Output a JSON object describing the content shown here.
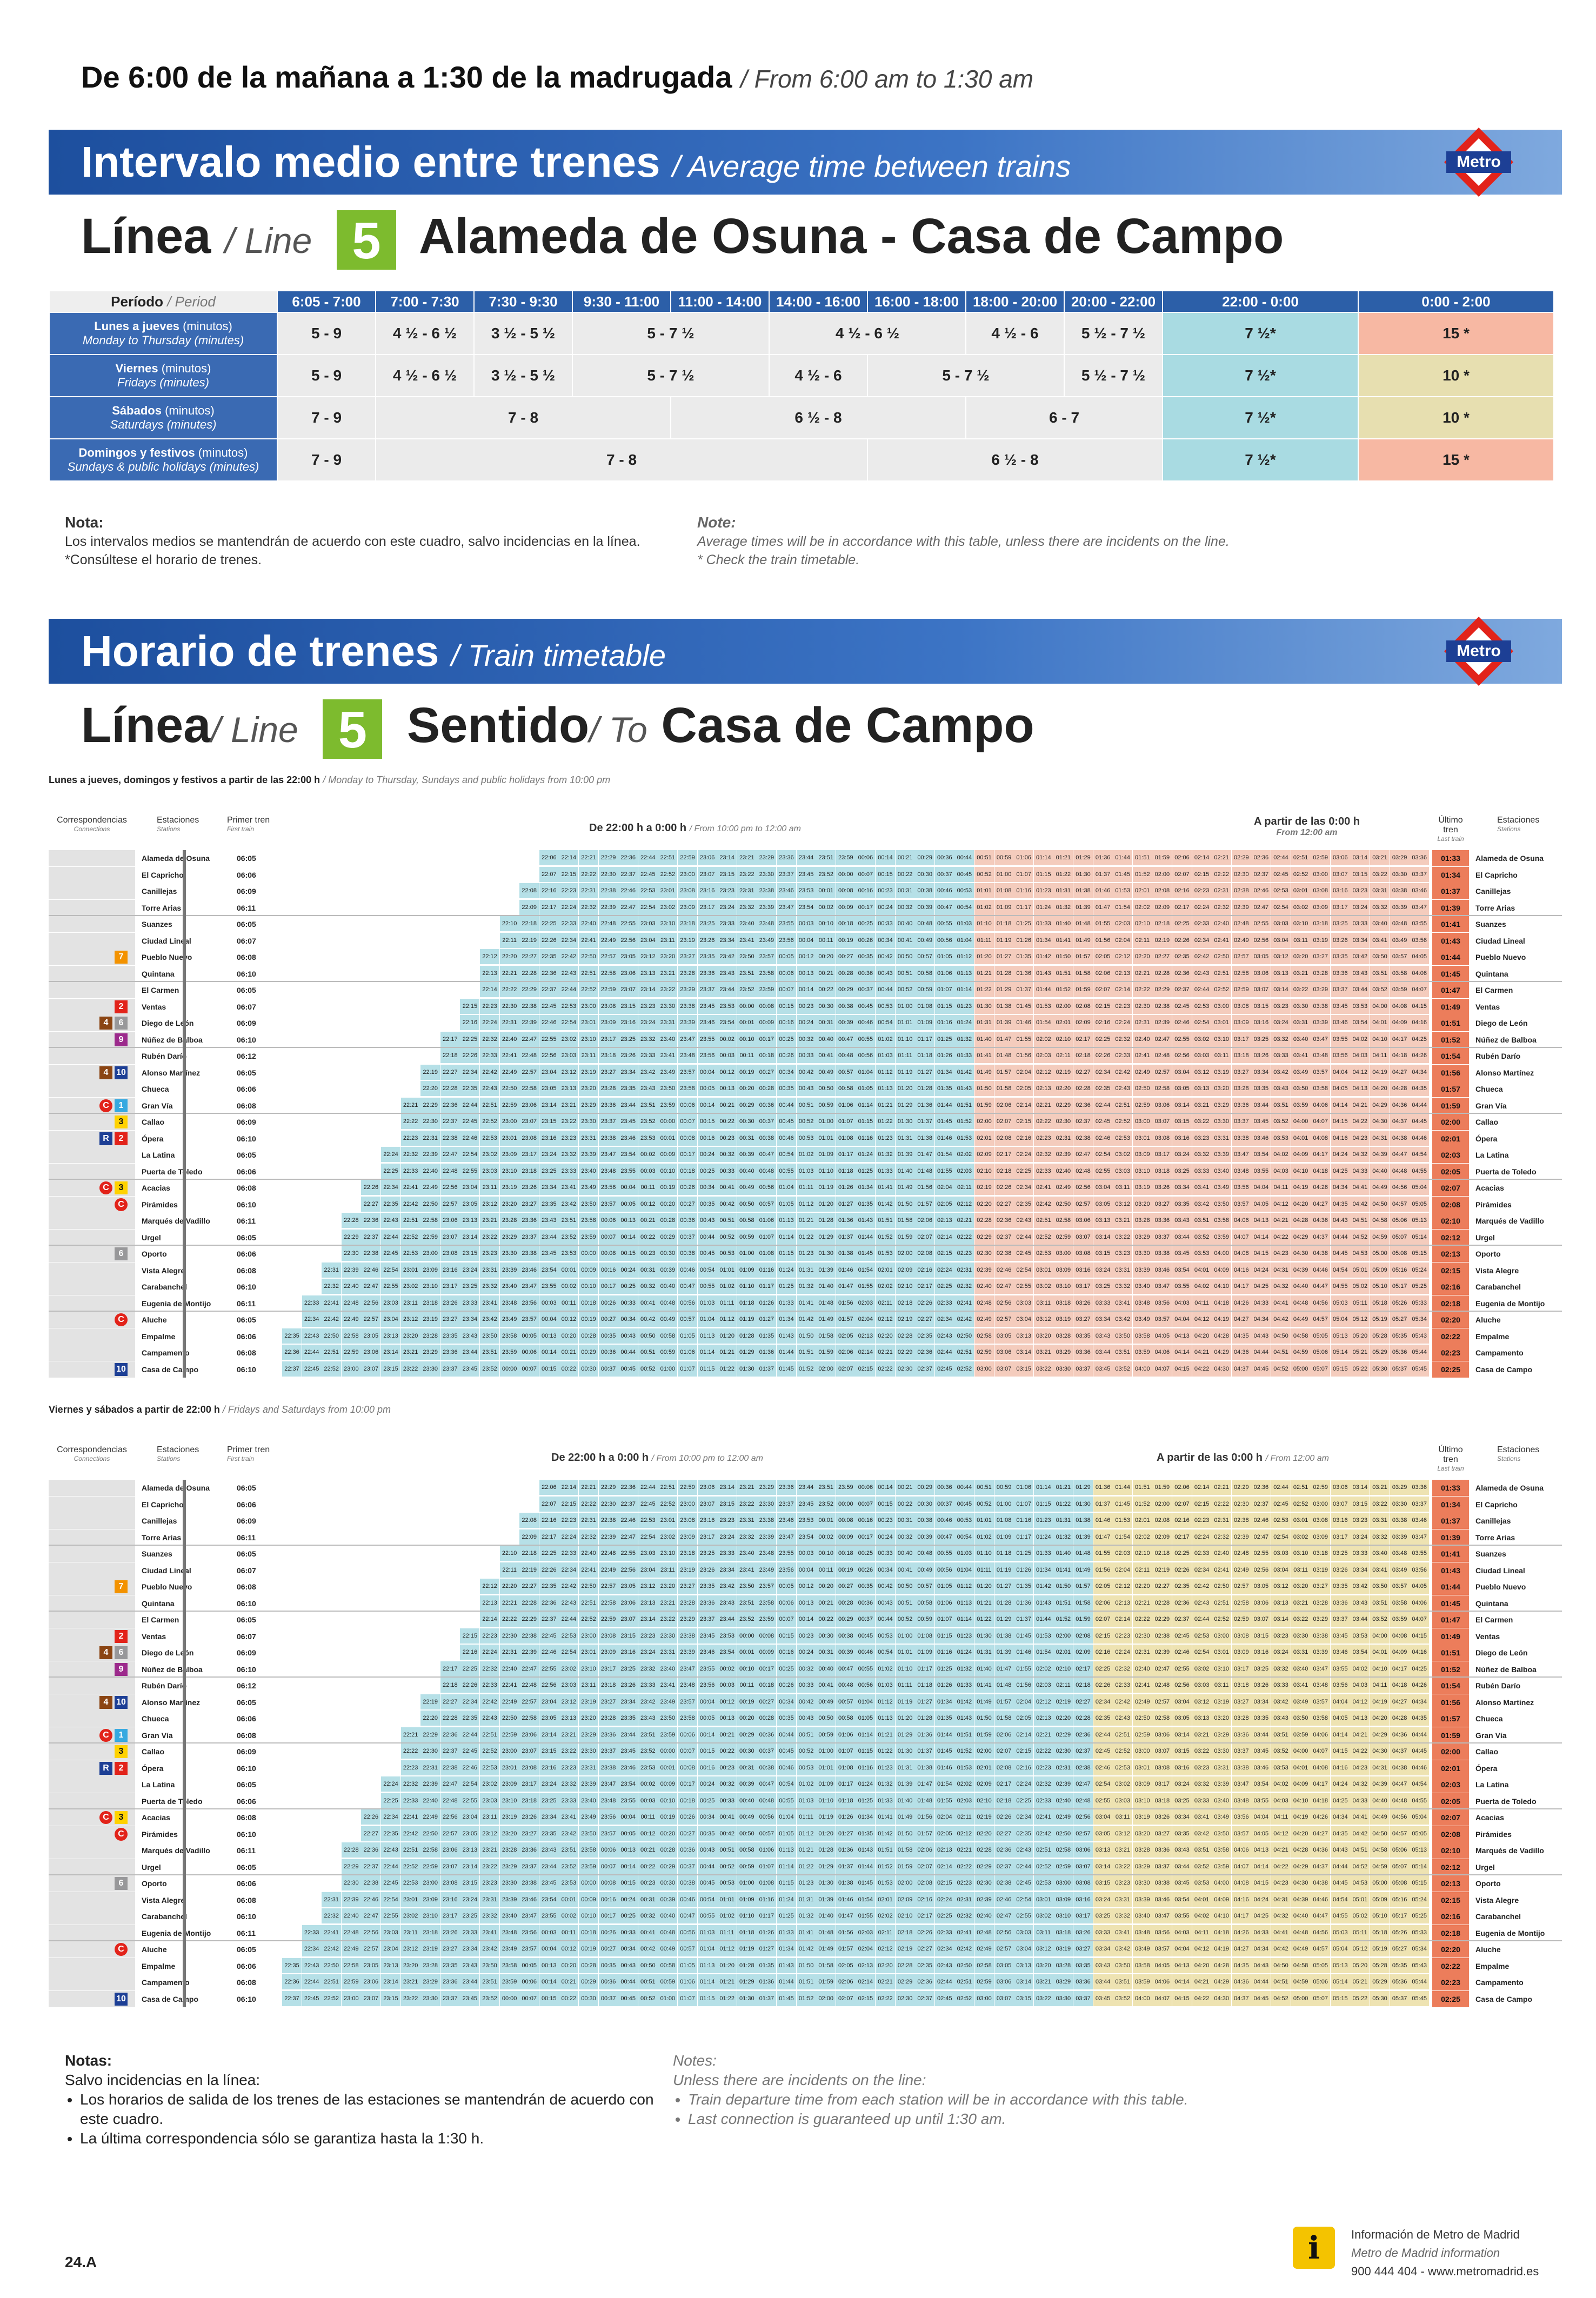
{
  "header": {
    "headline_es": "De 6:00 de la mañana a 1:30 de la madrugada",
    "headline_en": "/ From 6:00 am to 1:30 am"
  },
  "band1": {
    "title_es": "Intervalo medio entre trenes",
    "title_en": "/ Average time between trains",
    "logo": "Metro"
  },
  "line_block1": {
    "linea_es": "Línea",
    "linea_en": "/ Line",
    "number": "5",
    "route": "Alameda de Osuna - Casa de Campo"
  },
  "interval_table": {
    "period_label": "Período",
    "period_label_en": "/ Period",
    "periods": [
      "6:05 - 7:00",
      "7:00 - 7:30",
      "7:30 - 9:30",
      "9:30 - 11:00",
      "11:00 - 14:00",
      "14:00 - 16:00",
      "16:00 - 18:00",
      "18:00 - 20:00",
      "20:00 - 22:00",
      "22:00 - 0:00",
      "0:00 - 2:00"
    ],
    "rows": [
      {
        "label_es": "Lunes a jueves",
        "label_es2": "(minutos)",
        "label_en": "Monday to Thursday (minutes)",
        "cells": [
          "5 - 9",
          "4 ½ - 6 ½",
          "3 ½ - 5 ½",
          "5 - 7 ½",
          "4 ½ - 6 ½",
          "4 ½ - 6",
          "5 ½ - 7 ½",
          "7 ½*",
          "15 *"
        ]
      },
      {
        "label_es": "Viernes",
        "label_es2": "(minutos)",
        "label_en": "Fridays (minutes)",
        "cells": [
          "5 - 9",
          "4 ½ - 6 ½",
          "3 ½ - 5 ½",
          "5 - 7 ½",
          "4 ½ - 6",
          "5 - 7 ½",
          "5 ½ - 7 ½",
          "7 ½*",
          "10 *"
        ]
      },
      {
        "label_es": "Sábados",
        "label_es2": "(minutos)",
        "label_en": "Saturdays (minutes)",
        "cells": [
          "7 - 9",
          "7 - 8",
          "6 ½ - 8",
          "6 - 7",
          "7 ½*",
          "10 *"
        ]
      },
      {
        "label_es": "Domingos y festivos",
        "label_es2": "(minutos)",
        "label_en": "Sundays & public holidays (minutes)",
        "cells": [
          "7 - 9",
          "7 - 8",
          "6 ½ - 8",
          "7 ½*",
          "15 *"
        ]
      }
    ]
  },
  "notes1": {
    "title_es": "Nota:",
    "text_es1": "Los intervalos medios se mantendrán de acuerdo con este cuadro, salvo incidencias en la línea.",
    "text_es2": "*Consúltese el horario de trenes.",
    "title_en": "Note:",
    "text_en1": "Average times will be in accordance with this table, unless there are incidents on the line.",
    "text_en2": "* Check the train timetable."
  },
  "band2": {
    "title_es": "Horario de trenes",
    "title_en": "/ Train timetable",
    "logo": "Metro"
  },
  "line_block2": {
    "linea_es": "Línea",
    "linea_en": "/ Line",
    "number": "5",
    "sentido_es": "Sentido",
    "sentido_en": "/ To",
    "destination": "Casa de Campo"
  },
  "timetable1": {
    "caption_es": "Lunes a jueves, domingos y festivos a partir de las 22:00 h",
    "caption_en": "/ Monday to Thursday, Sundays and public holidays from 10:00 pm",
    "col_connections": "Correspondencias",
    "col_connections_en": "Connections",
    "col_stations": "Estaciones",
    "col_stations_en": "Stations",
    "col_first": "Primer tren",
    "col_first_en": "First train",
    "col_range1": "De 22:00 h a 0:00 h",
    "col_range1_en": "/ From 10:00 pm to 12:00 am",
    "col_range2": "A partir de las 0:00 h",
    "col_range2_en": "From 12:00 am",
    "col_last": "Último tren",
    "col_last_en": "Last train",
    "start_time": "22:06",
    "end_time": "01:20"
  },
  "timetable2": {
    "caption_es": "Viernes y sábados a partir de 22:00 h",
    "caption_en": "/ Fridays and Saturdays from 10:00 pm",
    "col_connections": "Correspondencias",
    "col_connections_en": "Connections",
    "col_stations": "Estaciones",
    "col_stations_en": "Stations",
    "col_first": "Primer tren",
    "col_first_en": "First train",
    "col_range1": "De 22:00 h a 0:00 h",
    "col_range1_en": "/ From 10:00 pm to 12:00 am",
    "col_range2": "A partir de las 0:00 h",
    "col_range2_en": "/ From 12:00 am",
    "col_last": "Último tren",
    "col_last_en": "Last train"
  },
  "stations": [
    {
      "name": "Alameda de Osuna",
      "first": "06:05",
      "last1": "01:33",
      "last2": "01:33",
      "conn": []
    },
    {
      "name": "El Capricho",
      "first": "06:06",
      "last1": "01:34",
      "last2": "01:34",
      "conn": []
    },
    {
      "name": "Canillejas",
      "first": "06:09",
      "last1": "01:37",
      "last2": "01:37",
      "conn": []
    },
    {
      "name": "Torre Arias",
      "first": "06:11",
      "last1": "01:39",
      "last2": "01:39",
      "conn": []
    },
    {
      "name": "Suanzes",
      "first": "06:05",
      "last1": "01:41",
      "last2": "01:41",
      "conn": []
    },
    {
      "name": "Ciudad Lineal",
      "first": "06:07",
      "last1": "01:43",
      "last2": "01:43",
      "conn": []
    },
    {
      "name": "Pueblo Nuevo",
      "first": "06:08",
      "last1": "01:44",
      "last2": "01:44",
      "conn": [
        "7"
      ]
    },
    {
      "name": "Quintana",
      "first": "06:10",
      "last1": "01:45",
      "last2": "01:45",
      "conn": []
    },
    {
      "name": "El Carmen",
      "first": "06:05",
      "last1": "01:47",
      "last2": "01:47",
      "conn": []
    },
    {
      "name": "Ventas",
      "first": "06:07",
      "last1": "01:49",
      "last2": "01:49",
      "conn": [
        "2"
      ]
    },
    {
      "name": "Diego de León",
      "first": "06:09",
      "last1": "01:51",
      "last2": "01:51",
      "conn": [
        "4",
        "6"
      ]
    },
    {
      "name": "Núñez de Balboa",
      "first": "06:10",
      "last1": "01:52",
      "last2": "01:52",
      "conn": [
        "9"
      ]
    },
    {
      "name": "Rubén Darío",
      "first": "06:12",
      "last1": "01:54",
      "last2": "01:54",
      "conn": []
    },
    {
      "name": "Alonso Martínez",
      "first": "06:05",
      "last1": "01:56",
      "last2": "01:56",
      "conn": [
        "4",
        "10"
      ]
    },
    {
      "name": "Chueca",
      "first": "06:06",
      "last1": "01:57",
      "last2": "01:57",
      "conn": []
    },
    {
      "name": "Gran Vía",
      "first": "06:08",
      "last1": "01:59",
      "last2": "01:59",
      "conn": [
        "C",
        "1"
      ]
    },
    {
      "name": "Callao",
      "first": "06:09",
      "last1": "02:00",
      "last2": "02:00",
      "conn": [
        "3"
      ]
    },
    {
      "name": "Ópera",
      "first": "06:10",
      "last1": "02:01",
      "last2": "02:01",
      "conn": [
        "R",
        "2"
      ]
    },
    {
      "name": "La Latina",
      "first": "06:05",
      "last1": "02:03",
      "last2": "02:03",
      "conn": []
    },
    {
      "name": "Puerta de Toledo",
      "first": "06:06",
      "last1": "02:05",
      "last2": "02:05",
      "conn": []
    },
    {
      "name": "Acacias",
      "first": "06:08",
      "last1": "02:07",
      "last2": "02:07",
      "conn": [
        "C",
        "3"
      ]
    },
    {
      "name": "Pirámides",
      "first": "06:10",
      "last1": "02:08",
      "last2": "02:08",
      "conn": [
        "C"
      ]
    },
    {
      "name": "Marqués de Vadillo",
      "first": "06:11",
      "last1": "02:10",
      "last2": "02:10",
      "conn": []
    },
    {
      "name": "Urgel",
      "first": "06:05",
      "last1": "02:12",
      "last2": "02:12",
      "conn": []
    },
    {
      "name": "Oporto",
      "first": "06:06",
      "last1": "02:13",
      "last2": "02:13",
      "conn": [
        "6"
      ]
    },
    {
      "name": "Vista Alegre",
      "first": "06:08",
      "last1": "02:15",
      "last2": "02:15",
      "conn": []
    },
    {
      "name": "Carabanchel",
      "first": "06:10",
      "last1": "02:16",
      "last2": "02:16",
      "conn": []
    },
    {
      "name": "Eugenia de Montijo",
      "first": "06:11",
      "last1": "02:18",
      "last2": "02:18",
      "conn": []
    },
    {
      "name": "Aluche",
      "first": "06:05",
      "last1": "02:20",
      "last2": "02:20",
      "conn": [
        "C"
      ]
    },
    {
      "name": "Empalme",
      "first": "06:06",
      "last1": "02:22",
      "last2": "02:22",
      "conn": []
    },
    {
      "name": "Campamento",
      "first": "06:08",
      "last1": "02:23",
      "last2": "02:23",
      "conn": []
    },
    {
      "name": "Casa de Campo",
      "first": "06:10",
      "last1": "02:25",
      "last2": "02:25",
      "conn": [
        "10"
      ]
    }
  ],
  "badge_colors": {
    "1": "#36a9e0",
    "2": "#e2231a",
    "3": "#ffd200",
    "4": "#8b4513",
    "6": "#98989a",
    "7": "#f39200",
    "9": "#9c2a8c",
    "10": "#1d3f95",
    "C": "#e2231a",
    "R": "#1d3f95"
  },
  "notes2": {
    "title_es": "Notas:",
    "lead_es": "Salvo incidencias en la línea:",
    "b1_es": "Los horarios de salida de los trenes de las estaciones se mantendrán de acuerdo con este cuadro.",
    "b2_es": "La última correspondencia sólo se garantiza hasta la 1:30 h.",
    "title_en": "Notes:",
    "lead_en": "Unless there are incidents on the line:",
    "b1_en": "Train departure time from each station will be in accordance with this table.",
    "b2_en": "Last connection is guaranteed up until 1:30 am."
  },
  "footer": {
    "code": "24.A",
    "info_es": "Información de Metro de Madrid",
    "info_en": "Metro de Madrid information",
    "contact": "900 444 404 - www.metromadrid.es"
  }
}
